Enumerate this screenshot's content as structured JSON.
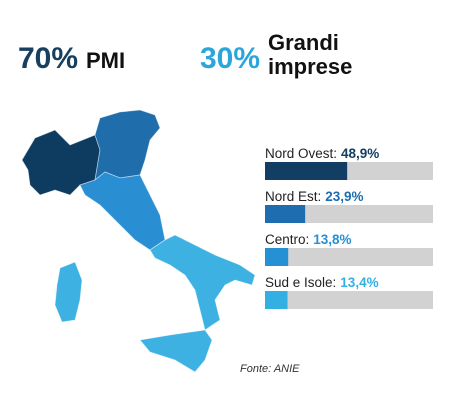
{
  "header": {
    "stats": [
      {
        "label": "70%",
        "name": "PMI",
        "color": "#173f60"
      },
      {
        "label": "30%",
        "name": "Grandi imprese",
        "name_lines": [
          "Grandi",
          "imprese"
        ],
        "color": "#2aa6da"
      }
    ]
  },
  "chart_data": {
    "type": "bar",
    "orientation": "horizontal",
    "categories": [
      "Nord Ovest:",
      "Nord Est:",
      "Centro:",
      "Sud e Isole:"
    ],
    "values": [
      48.9,
      23.9,
      13.8,
      13.4
    ],
    "value_labels": [
      "48,9%",
      "23,9%",
      "13,8%",
      "13,4%"
    ],
    "colors": [
      "#123e63",
      "#1e6db0",
      "#2690d4",
      "#33afe4"
    ],
    "xlim": [
      0,
      100
    ],
    "track_color": "#d2d2d2",
    "source": "Fonte: ANIE"
  }
}
